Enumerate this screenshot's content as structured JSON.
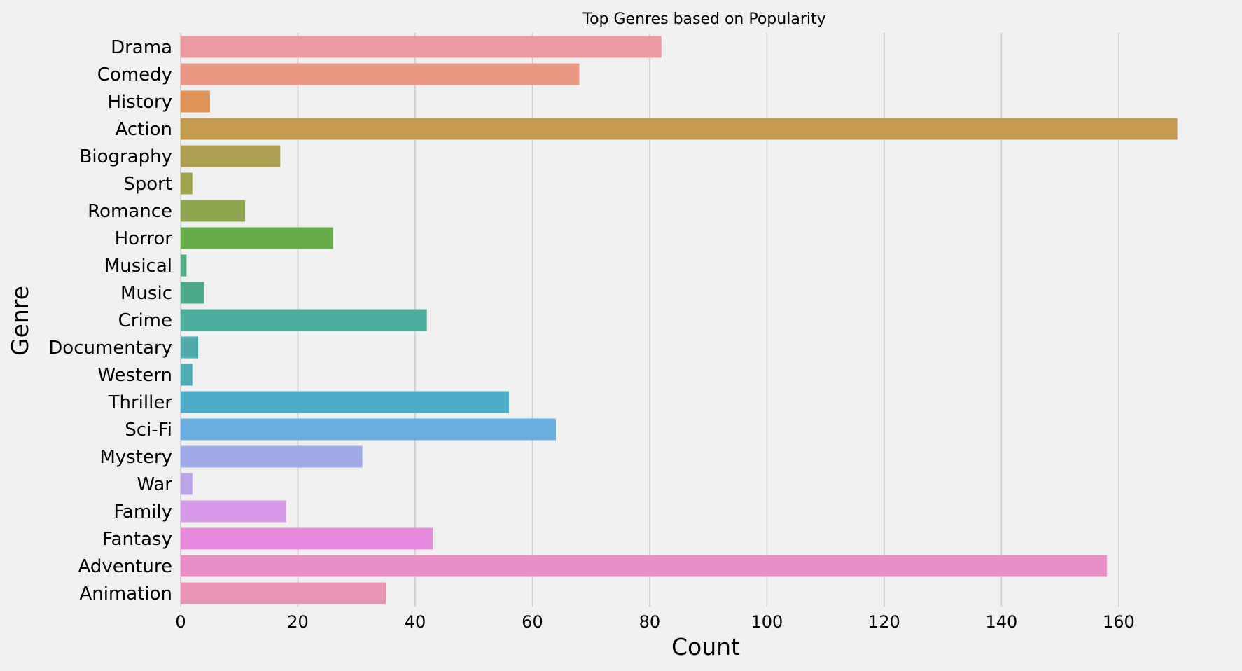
{
  "chart_data": {
    "type": "bar",
    "orientation": "horizontal",
    "title": "Top Genres based on Popularity",
    "xlabel": "Count",
    "ylabel": "Genre",
    "categories": [
      "Drama",
      "Comedy",
      "History",
      "Action",
      "Biography",
      "Sport",
      "Romance",
      "Horror",
      "Musical",
      "Music",
      "Crime",
      "Documentary",
      "Western",
      "Thriller",
      "Sci-Fi",
      "Mystery",
      "War",
      "Family",
      "Fantasy",
      "Adventure",
      "Animation"
    ],
    "values": [
      82,
      68,
      5,
      170,
      17,
      2,
      11,
      26,
      1,
      4,
      42,
      3,
      2,
      56,
      64,
      31,
      2,
      18,
      43,
      158,
      35
    ],
    "colors": [
      "#ea9aa1",
      "#ea9883",
      "#df9356",
      "#c39a4e",
      "#afa04f",
      "#a0a34e",
      "#8ea64f",
      "#66ae4c",
      "#51ae83",
      "#4da98c",
      "#4daea0",
      "#4cabaa",
      "#4cabb4",
      "#4cabc8",
      "#6aaee0",
      "#a0aae8",
      "#bca4ea",
      "#d69ae8",
      "#e88be0",
      "#e88fc8",
      "#e895b5"
    ],
    "xlim": [
      0,
      171
    ],
    "xticks": [
      0,
      20,
      40,
      60,
      80,
      100,
      120,
      140,
      160
    ],
    "grid": "vertical",
    "style": "fivethirtyeight"
  }
}
